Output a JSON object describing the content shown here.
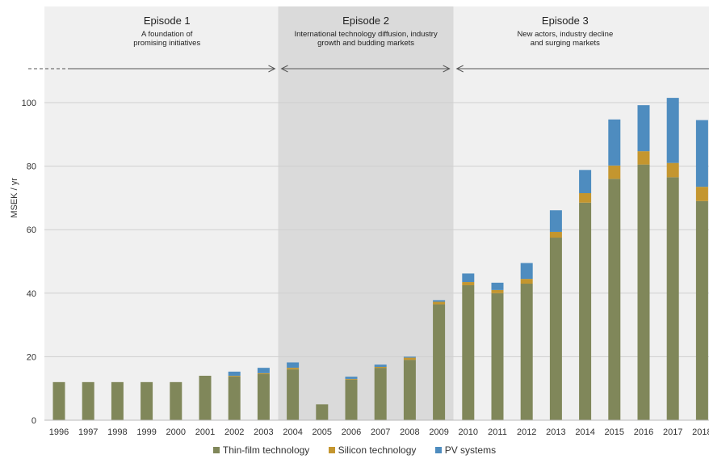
{
  "colors": {
    "thin_film": "#80875a",
    "silicon": "#c4962f",
    "pv_systems": "#4e8cbf",
    "episode_bg_light": "#f0f0f0",
    "episode_bg_dark": "#dadada",
    "grid": "#cfcfcf"
  },
  "episodes": [
    {
      "title": "Episode 1",
      "subtitle_lines": [
        "A foundation of",
        "promising initiatives"
      ]
    },
    {
      "title": "Episode 2",
      "subtitle_lines": [
        "International technology diffusion, industry",
        "growth and budding markets"
      ]
    },
    {
      "title": "Episode 3",
      "subtitle_lines": [
        "New actors, industry decline",
        "and surging markets"
      ]
    }
  ],
  "chart_data": {
    "type": "bar",
    "stacked": true,
    "categories": [
      "1996",
      "1997",
      "1998",
      "1999",
      "2000",
      "2001",
      "2002",
      "2003",
      "2004",
      "2005",
      "2006",
      "2007",
      "2008",
      "2009",
      "2010",
      "2011",
      "2012",
      "2013",
      "2014",
      "2015",
      "2016",
      "2017",
      "2018"
    ],
    "series": [
      {
        "name": "Thin-film technology",
        "color_key": "thin_film",
        "values": [
          12,
          12,
          12,
          12,
          12,
          14,
          13.8,
          14.5,
          16,
          5,
          12.8,
          16.5,
          19,
          36.5,
          42.5,
          40,
          43,
          57.5,
          68.5,
          76,
          80.5,
          76.5,
          69
        ]
      },
      {
        "name": "Silicon technology",
        "color_key": "silicon",
        "values": [
          0,
          0,
          0,
          0,
          0,
          0,
          0.2,
          0.3,
          0.5,
          0,
          0.2,
          0.3,
          0.7,
          0.8,
          1,
          1,
          1.5,
          1.8,
          3,
          4.2,
          4.2,
          4.5,
          4.5
        ]
      },
      {
        "name": "PV systems",
        "color_key": "pv_systems",
        "values": [
          0,
          0,
          0,
          0,
          0,
          0,
          1.3,
          1.7,
          1.7,
          0,
          0.7,
          0.7,
          0.3,
          0.5,
          2.7,
          2.3,
          5,
          6.8,
          7.3,
          14.5,
          14.5,
          20.5,
          21
        ]
      }
    ],
    "ylabel": "MSEK / yr",
    "ylim": [
      0,
      100
    ],
    "yticks": [
      0,
      20,
      40,
      60,
      80,
      100
    ],
    "grid": true,
    "legend_position": "bottom"
  }
}
